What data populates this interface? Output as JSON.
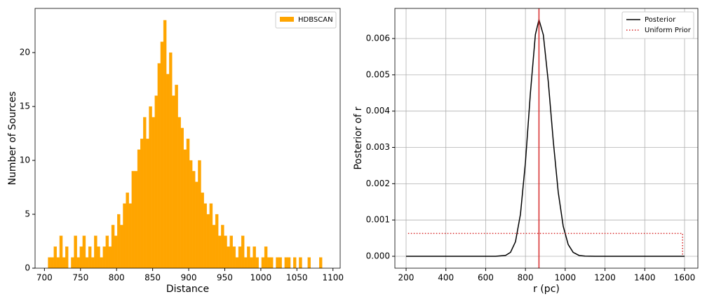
{
  "chart_data": [
    {
      "type": "histogram",
      "xlabel": "Distance",
      "ylabel": "Number of Sources",
      "bins": [
        705,
        709,
        713,
        717,
        721,
        725,
        729,
        733,
        737,
        741,
        745,
        749,
        753,
        757,
        761,
        765,
        769,
        773,
        777,
        781,
        785,
        789,
        793,
        797,
        801,
        805,
        809,
        813,
        817,
        821,
        825,
        829,
        833,
        837,
        841,
        845,
        849,
        853,
        857,
        861,
        865,
        869,
        873,
        877,
        881,
        885,
        889,
        893,
        897,
        901,
        905,
        909,
        913,
        917,
        921,
        925,
        929,
        933,
        937,
        941,
        945,
        949,
        953,
        957,
        961,
        965,
        969,
        973,
        977,
        981,
        985,
        989,
        993,
        997,
        1001,
        1005,
        1009,
        1013,
        1017,
        1021,
        1025,
        1029,
        1033,
        1037,
        1041,
        1045,
        1049,
        1053,
        1057,
        1061,
        1065,
        1069,
        1073,
        1077,
        1081,
        1085
      ],
      "series": [
        {
          "name": "HDBSCAN",
          "color": "#ffa500",
          "values": [
            1,
            1,
            2,
            1,
            3,
            1,
            2,
            0,
            1,
            3,
            1,
            2,
            3,
            1,
            2,
            1,
            3,
            2,
            1,
            2,
            3,
            2,
            4,
            3,
            5,
            4,
            6,
            7,
            6,
            9,
            9,
            11,
            12,
            14,
            12,
            15,
            14,
            16,
            19,
            21,
            23,
            18,
            20,
            16,
            17,
            14,
            13,
            11,
            12,
            10,
            9,
            8,
            10,
            7,
            6,
            5,
            6,
            4,
            5,
            3,
            4,
            3,
            2,
            3,
            2,
            1,
            2,
            3,
            1,
            2,
            1,
            2,
            1,
            0,
            1,
            2,
            1,
            1,
            0,
            1,
            1,
            0,
            1,
            1,
            0,
            1,
            0,
            1,
            0,
            0,
            1,
            0,
            0,
            0,
            1
          ]
        }
      ],
      "xlim": [
        687,
        1110
      ],
      "ylim": [
        0,
        24.1
      ],
      "xticks": [
        700,
        750,
        800,
        850,
        900,
        950,
        1000,
        1050,
        1100
      ],
      "yticks": [
        0,
        5,
        10,
        15,
        20
      ],
      "grid": false,
      "legend": "upper right"
    },
    {
      "type": "line",
      "xlabel": "r (pc)",
      "ylabel": "Posterior of r",
      "series": [
        {
          "name": "Posterior",
          "color": "#000000",
          "style": "solid",
          "x": [
            200,
            400,
            600,
            650,
            700,
            725,
            750,
            775,
            800,
            825,
            850,
            868,
            890,
            915,
            940,
            965,
            990,
            1015,
            1040,
            1070,
            1100,
            1150,
            1600
          ],
          "values": [
            0,
            0,
            0,
            0,
            2.32e-05,
            0.000109,
            0.000402,
            0.00116,
            0.00259,
            0.0045,
            0.00611,
            0.00652,
            0.0061,
            0.0048,
            0.00317,
            0.00176,
            0.000825,
            0.000325,
            0.000107,
            2.25e-05,
            4e-06,
            0,
            0
          ]
        },
        {
          "name": "Uniform Prior",
          "color": "#d62728",
          "style": "dotted",
          "x": [
            210,
            1590,
            1590
          ],
          "values": [
            0.00063,
            0.00063,
            0
          ]
        }
      ],
      "vline": 868,
      "vline_color": "#d62728",
      "xlim": [
        143.6,
        1667
      ],
      "ylim": [
        -0.000328,
        0.00683
      ],
      "xticks": [
        200,
        400,
        600,
        800,
        1000,
        1200,
        1400,
        1600
      ],
      "yticks": [
        {
          "value": 0,
          "label": "0.000"
        },
        {
          "value": 0.001,
          "label": "0.001"
        },
        {
          "value": 0.002,
          "label": "0.002"
        },
        {
          "value": 0.003,
          "label": "0.003"
        },
        {
          "value": 0.004,
          "label": "0.004"
        },
        {
          "value": 0.005,
          "label": "0.005"
        },
        {
          "value": 0.006,
          "label": "0.006"
        }
      ],
      "grid": true,
      "legend": "upper right"
    }
  ]
}
